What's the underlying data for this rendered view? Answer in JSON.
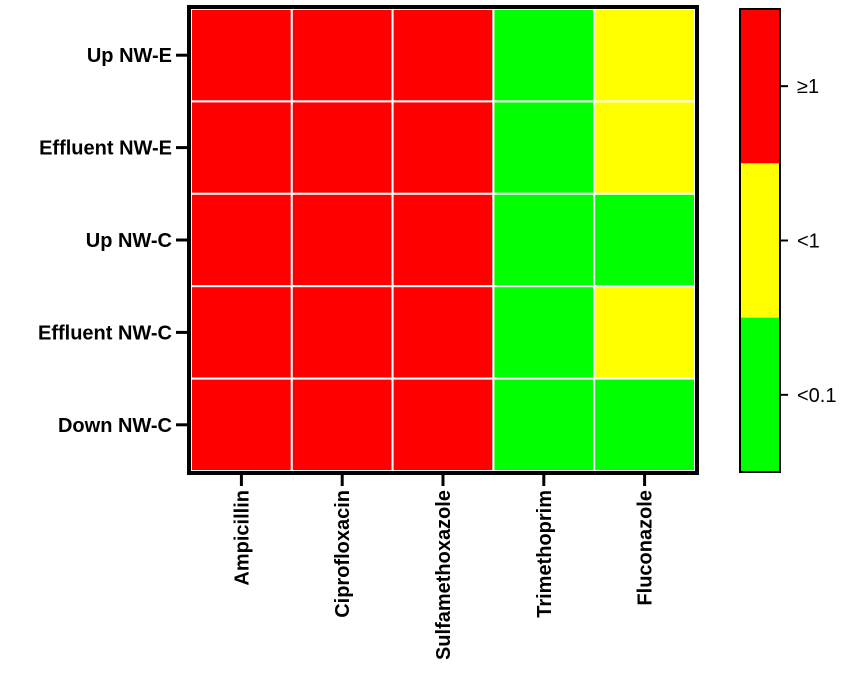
{
  "chart_data": {
    "type": "heatmap",
    "rows": [
      "Up NW-E",
      "Effluent NW-E",
      "Up NW-C",
      "Effluent NW-C",
      "Down NW-C"
    ],
    "columns": [
      "Ampicillin",
      "Ciprofloxacin",
      "Sulfamethoxazole",
      "Trimethoprim",
      "Fluconazole"
    ],
    "values": [
      [
        "≥1",
        "≥1",
        "≥1",
        "<0.1",
        "<1"
      ],
      [
        "≥1",
        "≥1",
        "≥1",
        "<0.1",
        "<1"
      ],
      [
        "≥1",
        "≥1",
        "≥1",
        "<0.1",
        "<0.1"
      ],
      [
        "≥1",
        "≥1",
        "≥1",
        "<0.1",
        "<1"
      ],
      [
        "≥1",
        "≥1",
        "≥1",
        "<0.1",
        "<0.1"
      ]
    ],
    "legend": {
      "position": "right",
      "levels": [
        {
          "label": "≥1",
          "color": "#ff0000"
        },
        {
          "label": "<1",
          "color": "#ffff00"
        },
        {
          "label": "<0.1",
          "color": "#00ff00"
        }
      ]
    },
    "colors": {
      "cell_border": "#ffffff",
      "frame": "#000000"
    }
  }
}
